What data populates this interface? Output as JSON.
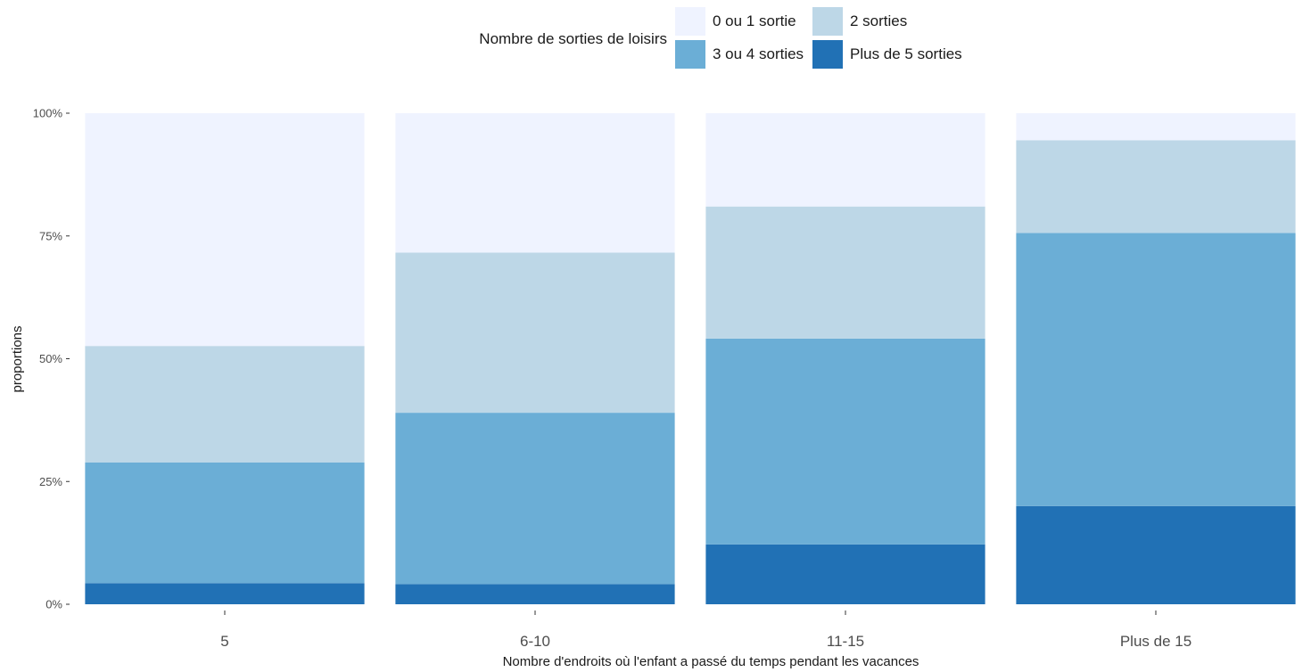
{
  "chart_data": {
    "type": "bar",
    "stacked": true,
    "orientation": "vertical",
    "categories": [
      "5",
      "6-10",
      "11-15",
      "Plus de 15"
    ],
    "series": [
      {
        "name": "Plus de 5 sorties",
        "color": "#2171b5",
        "values": [
          4.3,
          4.1,
          12.2,
          20.0
        ]
      },
      {
        "name": "3 ou 4 sorties",
        "color": "#6baed6",
        "values": [
          24.6,
          34.9,
          41.9,
          55.6
        ]
      },
      {
        "name": "2 sorties",
        "color": "#bdd7e7",
        "values": [
          23.7,
          32.6,
          26.9,
          18.9
        ]
      },
      {
        "name": "0 ou 1 sortie",
        "color": "#eff3ff",
        "values": [
          47.4,
          28.4,
          19.0,
          5.5
        ]
      }
    ],
    "xlabel": "Nombre d'endroits où l'enfant a passé du temps pendant les vacances",
    "ylabel": "proportions",
    "ylim": [
      0,
      100
    ],
    "yticks": [
      "0%",
      "25%",
      "50%",
      "75%",
      "100%"
    ],
    "ytick_values": [
      0,
      25,
      50,
      75,
      100
    ],
    "grid": false,
    "legend": {
      "title": "Nombre de sorties de loisirs",
      "position": "top",
      "items": [
        {
          "label": "0 ou 1 sortie",
          "color": "#eff3ff"
        },
        {
          "label": "2 sorties",
          "color": "#bdd7e7"
        },
        {
          "label": "3 ou 4 sorties",
          "color": "#6baed6"
        },
        {
          "label": "Plus de 5 sorties",
          "color": "#2171b5"
        }
      ]
    }
  }
}
